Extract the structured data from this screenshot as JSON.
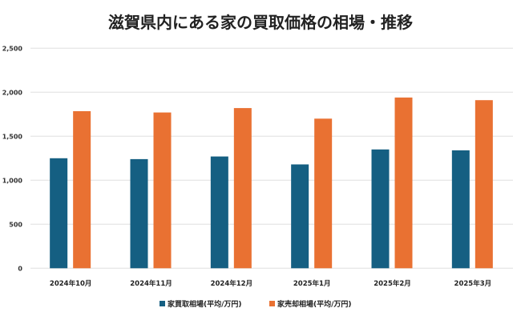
{
  "chart_data": {
    "type": "bar",
    "title": "滋賀県内にある家の買取価格の相場・推移",
    "categories": [
      "2024年10月",
      "2024年11月",
      "2024年12月",
      "2025年1月",
      "2025年2月",
      "2025年3月"
    ],
    "series": [
      {
        "name": "家買取相場(平均/万円)",
        "color": "#155f82",
        "values": [
          1250,
          1240,
          1270,
          1180,
          1350,
          1340
        ]
      },
      {
        "name": "家売却相場(平均/万円)",
        "color": "#e97132",
        "values": [
          1785,
          1770,
          1820,
          1700,
          1940,
          1910
        ]
      }
    ],
    "yticks": [
      "0",
      "500",
      "1,000",
      "1,500",
      "2,000",
      "2,500"
    ],
    "ylim": [
      0,
      2500
    ],
    "grid": true,
    "legend": "bottom"
  }
}
